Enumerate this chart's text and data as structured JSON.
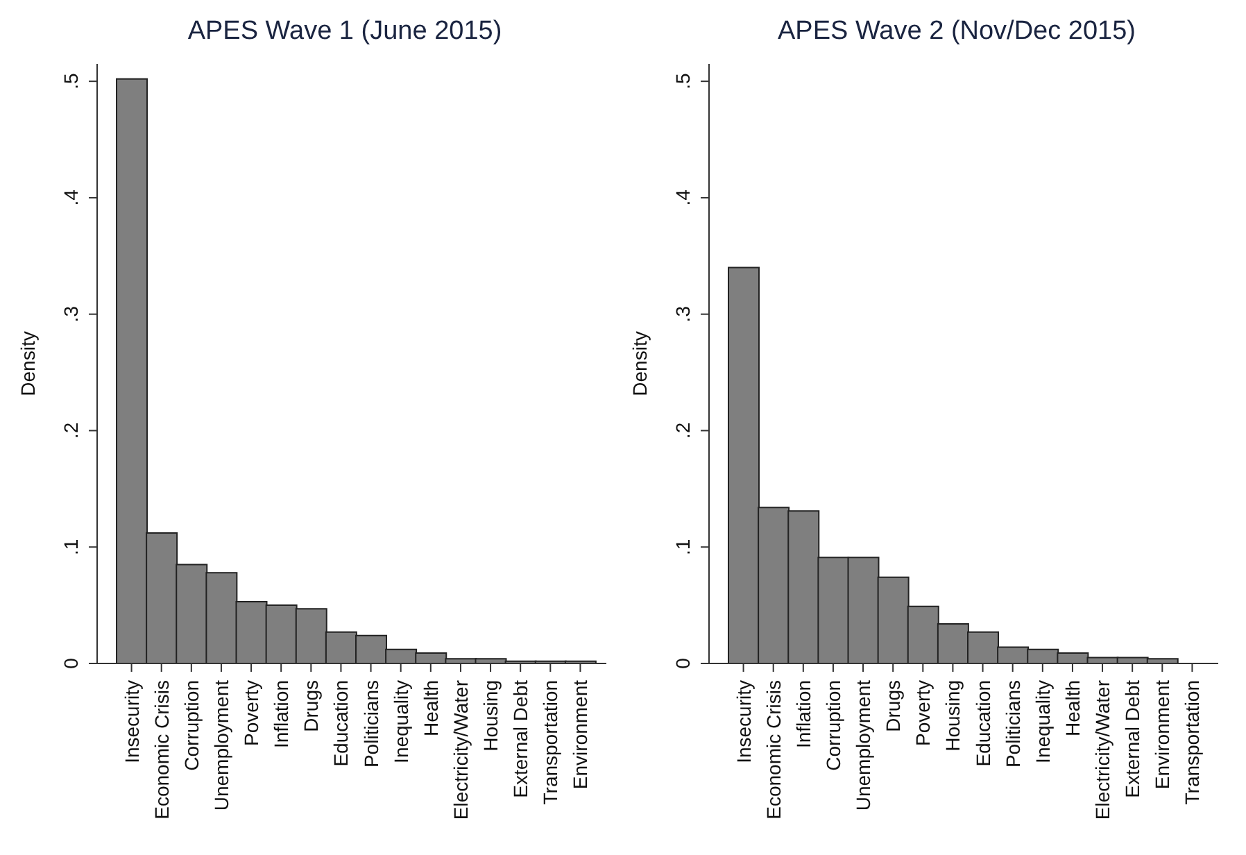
{
  "chart_data": [
    {
      "type": "bar",
      "title": "APES Wave 1 (June 2015)",
      "ylabel": "Density",
      "categories": [
        "Insecurity",
        "Economic Crisis",
        "Corruption",
        "Unemployment",
        "Poverty",
        "Inflation",
        "Drugs",
        "Education",
        "Politicians",
        "Inequality",
        "Health",
        "Electricity/Water",
        "Housing",
        "External Debt",
        "Transportation",
        "Environment"
      ],
      "values": [
        0.502,
        0.112,
        0.085,
        0.078,
        0.053,
        0.05,
        0.047,
        0.027,
        0.024,
        0.012,
        0.009,
        0.004,
        0.004,
        0.002,
        0.002,
        0.002
      ],
      "color": "#7f7f7f",
      "ylim": [
        0,
        0.515
      ],
      "yticks": [
        {
          "value": 0,
          "label": "0"
        },
        {
          "value": 0.1,
          "label": ".1"
        },
        {
          "value": 0.2,
          "label": ".2"
        },
        {
          "value": 0.3,
          "label": ".3"
        },
        {
          "value": 0.4,
          "label": ".4"
        },
        {
          "value": 0.5,
          "label": ".5"
        }
      ],
      "grid": false,
      "legend": false
    },
    {
      "type": "bar",
      "title": "APES Wave 2 (Nov/Dec 2015)",
      "ylabel": "Density",
      "categories": [
        "Insecurity",
        "Economic Crisis",
        "Inflation",
        "Corruption",
        "Unemployment",
        "Drugs",
        "Poverty",
        "Housing",
        "Education",
        "Politicians",
        "Inequality",
        "Health",
        "Electricity/Water",
        "External Debt",
        "Environment",
        "Transportation"
      ],
      "values": [
        0.34,
        0.134,
        0.131,
        0.091,
        0.091,
        0.074,
        0.049,
        0.034,
        0.027,
        0.014,
        0.012,
        0.009,
        0.005,
        0.005,
        0.004,
        0
      ],
      "color": "#7f7f7f",
      "ylim": [
        0,
        0.515
      ],
      "yticks": [
        {
          "value": 0,
          "label": "0"
        },
        {
          "value": 0.1,
          "label": ".1"
        },
        {
          "value": 0.2,
          "label": ".2"
        },
        {
          "value": 0.3,
          "label": ".3"
        },
        {
          "value": 0.4,
          "label": ".4"
        },
        {
          "value": 0.5,
          "label": ".5"
        }
      ],
      "grid": false,
      "legend": false
    }
  ]
}
